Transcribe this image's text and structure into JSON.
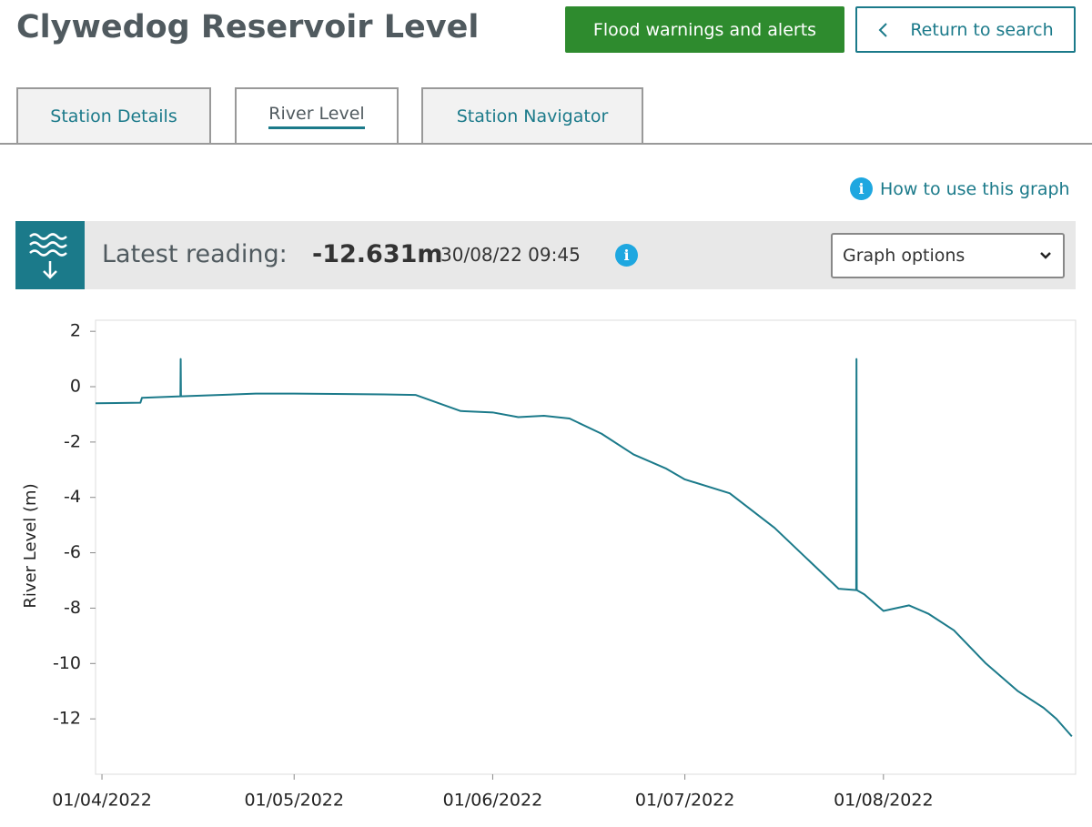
{
  "header": {
    "title": "Clywedog Reservoir Level",
    "flood_button": "Flood warnings and alerts",
    "return_button": "Return to search"
  },
  "tabs": [
    "Station Details",
    "River Level",
    "Station Navigator"
  ],
  "help_link": "How to use this graph",
  "reading": {
    "label": "Latest reading:",
    "value": "-12.631m",
    "time": "30/08/22 09:45",
    "options": "Graph options"
  },
  "chart_data": {
    "type": "line",
    "y_label": "River Level (m)",
    "color": "#1b7a8a",
    "x": [
      "2022-03-31",
      "2022-04-07",
      "2022-04-07T06:00",
      "2022-04-13T06:00",
      "2022-04-13T07:00",
      "2022-04-13T08:00",
      "2022-04-25",
      "2022-05-01",
      "2022-05-15",
      "2022-05-20",
      "2022-05-27",
      "2022-06-01",
      "2022-06-05",
      "2022-06-09",
      "2022-06-13",
      "2022-06-18",
      "2022-06-23",
      "2022-06-28",
      "2022-07-01",
      "2022-07-08",
      "2022-07-15",
      "2022-07-20",
      "2022-07-25",
      "2022-07-27T18:00",
      "2022-07-27T19:00",
      "2022-07-27T20:00",
      "2022-07-29",
      "2022-08-01",
      "2022-08-05",
      "2022-08-08",
      "2022-08-12",
      "2022-08-17",
      "2022-08-22",
      "2022-08-26",
      "2022-08-28",
      "2022-08-30T09:45"
    ],
    "values": [
      -0.6,
      -0.58,
      -0.4,
      -0.35,
      1.0,
      -0.35,
      -0.25,
      -0.25,
      -0.28,
      -0.3,
      -0.88,
      -0.93,
      -1.1,
      -1.05,
      -1.15,
      -1.7,
      -2.45,
      -2.95,
      -3.35,
      -3.85,
      -5.1,
      -6.2,
      -7.3,
      -7.35,
      1.0,
      -7.35,
      -7.5,
      -8.1,
      -7.9,
      -8.2,
      -8.8,
      -10.0,
      -11.0,
      -11.6,
      -12.0,
      -12.631
    ],
    "xlim": [
      "2022-03-31",
      "2022-08-31"
    ],
    "xticks": [
      {
        "value": "2022-04-01",
        "label": "01/04/2022"
      },
      {
        "value": "2022-05-01",
        "label": "01/05/2022"
      },
      {
        "value": "2022-06-01",
        "label": "01/06/2022"
      },
      {
        "value": "2022-07-01",
        "label": "01/07/2022"
      },
      {
        "value": "2022-08-01",
        "label": "01/08/2022"
      }
    ],
    "ylim": [
      -14,
      2.4
    ],
    "yticks": [
      -12,
      -10,
      -8,
      -6,
      -4,
      -2,
      0,
      2
    ]
  }
}
